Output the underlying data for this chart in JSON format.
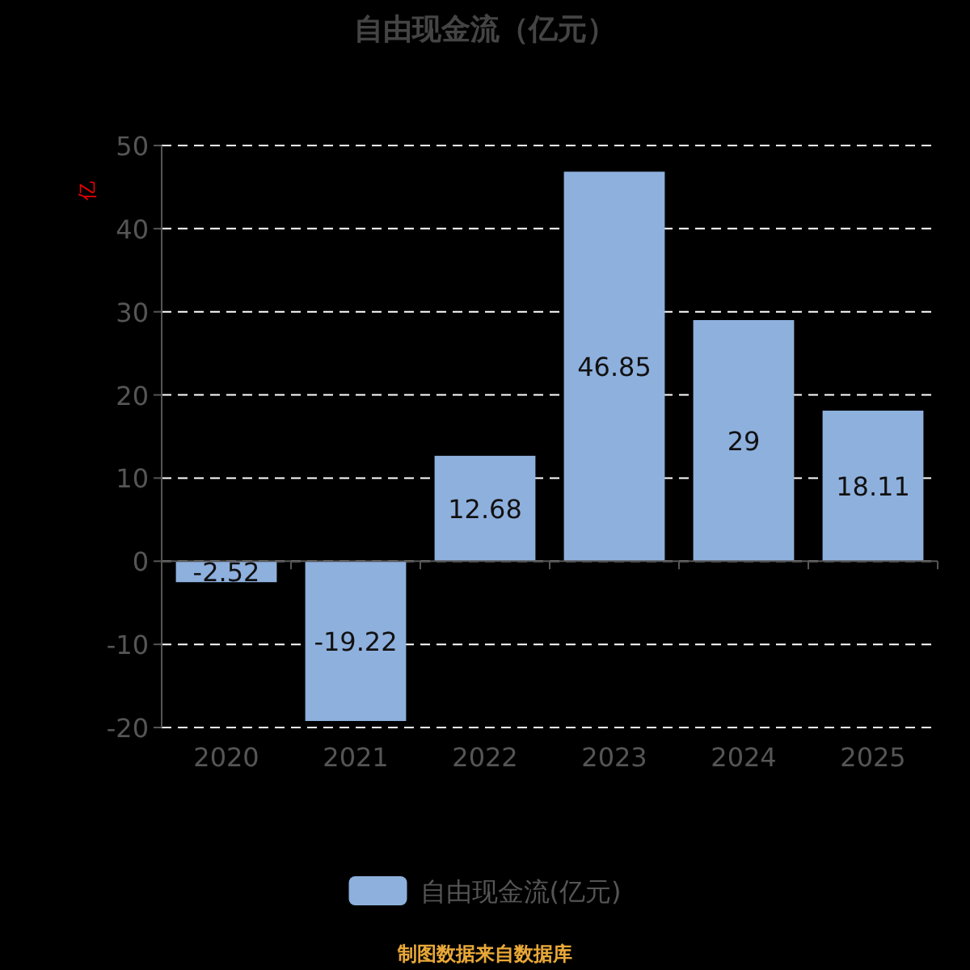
{
  "chart_data": {
    "type": "bar",
    "title": "自由现金流（亿元）",
    "ylabel": "亿",
    "categories": [
      "2020",
      "2021",
      "2022",
      "2023",
      "2024",
      "2025"
    ],
    "series": [
      {
        "name": "自由现金流(亿元)",
        "color": "#8eb0dd",
        "values": [
          -2.52,
          -19.22,
          12.68,
          46.85,
          29,
          18.11
        ]
      }
    ],
    "ylim": [
      -20,
      50
    ],
    "yticks": [
      -20,
      -10,
      0,
      10,
      20,
      30,
      40,
      50
    ],
    "grid": "y",
    "legend": "bottom",
    "data_labels": true,
    "annotations": [
      "制图数据来自数据库"
    ]
  }
}
